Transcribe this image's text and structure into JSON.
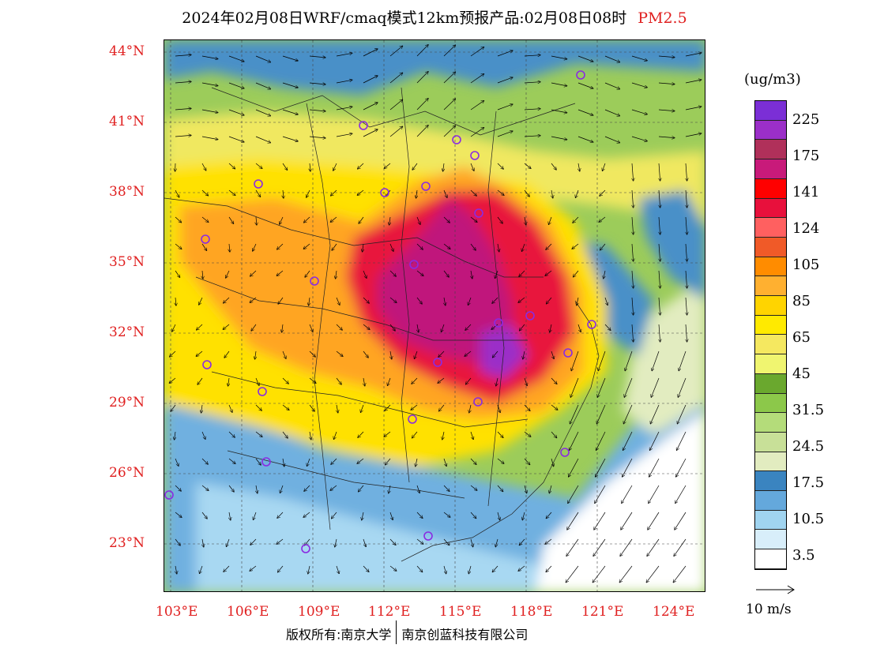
{
  "title": {
    "text": "2024年02月08日WRF/cmaq模式12km预报产品:02月08日08时",
    "pollutant": "PM2.5"
  },
  "map": {
    "lat_labels": [
      "44°N",
      "41°N",
      "38°N",
      "35°N",
      "32°N",
      "29°N",
      "26°N",
      "23°N"
    ],
    "lon_labels": [
      "103°E",
      "106°E",
      "109°E",
      "112°E",
      "115°E",
      "118°E",
      "121°E",
      "124°E"
    ],
    "lon_range": [
      103,
      124
    ],
    "lat_range": [
      21,
      44.5
    ]
  },
  "legend": {
    "unit": "(ug/m3)",
    "labels": [
      "225",
      "175",
      "141",
      "124",
      "105",
      "85",
      "65",
      "45",
      "31.5",
      "24.5",
      "17.5",
      "10.5",
      "3.5"
    ],
    "colors": [
      "#7b2fd6",
      "#9b2fc8",
      "#b0305a",
      "#c81a7a",
      "#ff0000",
      "#e8103c",
      "#ff6060",
      "#f05a28",
      "#ff8c00",
      "#ffb030",
      "#ffd400",
      "#ffea00",
      "#f5e860",
      "#f0f570",
      "#6aa82e",
      "#8cc84a",
      "#b4dc7a",
      "#c8e098",
      "#e2ecc0",
      "#3a84c0",
      "#64a8dc",
      "#a0d4f0",
      "#d8eefa",
      "#ffffff"
    ]
  },
  "wind_reference": {
    "label": "10 m/s"
  },
  "footer": {
    "copyright": "版权所有:南京大学",
    "company": "南京创蓝科技有限公司"
  }
}
